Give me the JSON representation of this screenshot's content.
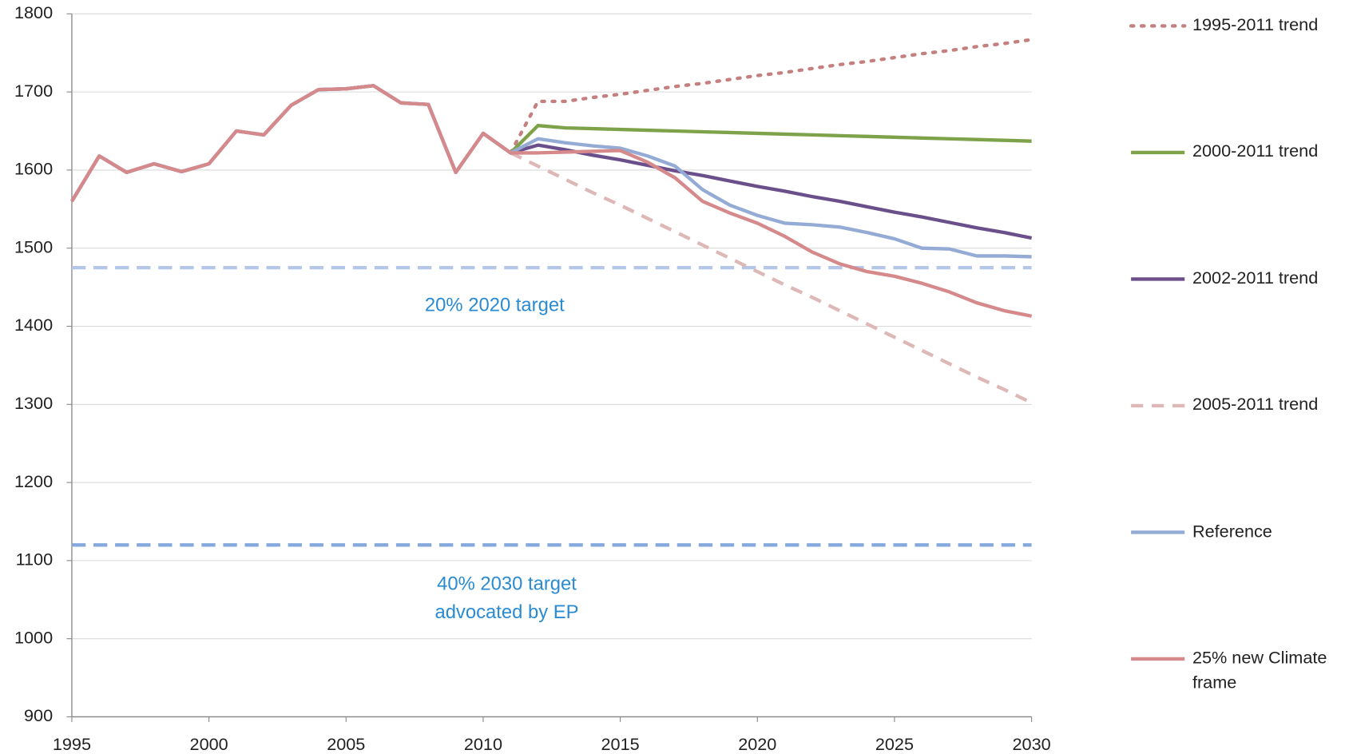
{
  "chart_data": {
    "type": "line",
    "x": [
      1995,
      1996,
      1997,
      1998,
      1999,
      2000,
      2001,
      2002,
      2003,
      2004,
      2005,
      2006,
      2007,
      2008,
      2009,
      2010,
      2011,
      2012,
      2013,
      2014,
      2015,
      2016,
      2017,
      2018,
      2019,
      2020,
      2021,
      2022,
      2023,
      2024,
      2025,
      2026,
      2027,
      2028,
      2029,
      2030
    ],
    "series": [
      {
        "name": "1995-2011 trend",
        "color": "#c4807f",
        "dash": "dotted",
        "values": [
          null,
          null,
          null,
          null,
          null,
          null,
          null,
          null,
          null,
          null,
          null,
          null,
          null,
          null,
          null,
          null,
          1622,
          1688,
          1688,
          1693,
          1697,
          1702,
          1707,
          1711,
          1716,
          1721,
          1725,
          1730,
          1735,
          1739,
          1744,
          1749,
          1753,
          1758,
          1762,
          1767
        ]
      },
      {
        "name": "2000-2011 trend",
        "color": "#7ea24a",
        "dash": "solid",
        "values": [
          null,
          null,
          null,
          null,
          null,
          null,
          null,
          null,
          null,
          null,
          null,
          null,
          null,
          null,
          null,
          null,
          1622,
          1657,
          1654,
          1653,
          1652,
          1651,
          1650,
          1649,
          1648,
          1647,
          1646,
          1645,
          1644,
          1643,
          1642,
          1641,
          1640,
          1639,
          1638,
          1637
        ]
      },
      {
        "name": "2002-2011 trend",
        "color": "#6a4f8b",
        "dash": "solid",
        "values": [
          1560,
          1618,
          1597,
          1608,
          1598,
          1608,
          1650,
          1645,
          1683,
          1703,
          1704,
          1708,
          1686,
          1684,
          1597,
          1647,
          1622,
          1632,
          1626,
          1619,
          1613,
          1606,
          1599,
          1593,
          1586,
          1579,
          1573,
          1566,
          1560,
          1553,
          1546,
          1540,
          1533,
          1526,
          1520,
          1513
        ]
      },
      {
        "name": "2005-2011 trend",
        "color": "#ddb8b7",
        "dash": "dashed",
        "values": [
          null,
          null,
          null,
          null,
          null,
          null,
          null,
          null,
          null,
          null,
          null,
          null,
          null,
          null,
          null,
          null,
          1622,
          1605,
          1588,
          1571,
          1555,
          1538,
          1521,
          1504,
          1487,
          1470,
          1453,
          1437,
          1420,
          1403,
          1386,
          1369,
          1352,
          1335,
          1319,
          1302
        ]
      },
      {
        "name": "Reference",
        "color": "#93abd5",
        "dash": "solid",
        "values": [
          1560,
          1618,
          1597,
          1608,
          1598,
          1608,
          1650,
          1645,
          1683,
          1703,
          1704,
          1708,
          1686,
          1684,
          1597,
          1647,
          1622,
          1640,
          1635,
          1631,
          1628,
          1618,
          1605,
          1575,
          1555,
          1542,
          1532,
          1530,
          1527,
          1520,
          1512,
          1500,
          1499,
          1490,
          1490,
          1489
        ]
      },
      {
        "name": "25% new Climate frame",
        "color": "#d5898b",
        "dash": "solid",
        "values": [
          1560,
          1618,
          1597,
          1608,
          1598,
          1608,
          1650,
          1645,
          1683,
          1703,
          1704,
          1708,
          1686,
          1684,
          1597,
          1647,
          1622,
          1622,
          1623,
          1624,
          1625,
          1610,
          1590,
          1560,
          1545,
          1532,
          1515,
          1495,
          1480,
          1470,
          1464,
          1455,
          1444,
          1430,
          1420,
          1413
        ]
      }
    ],
    "reference_lines": [
      {
        "value": 1475,
        "color": "#b4c7e8"
      },
      {
        "value": 1120,
        "color": "#85a9dc"
      }
    ],
    "annotations": [
      "20% 2020 target",
      "40% 2030 target advocated by EP"
    ],
    "xlim": [
      1995,
      2030
    ],
    "xticks": [
      1995,
      2000,
      2005,
      2010,
      2015,
      2020,
      2025,
      2030
    ],
    "ylim": [
      900,
      1800
    ],
    "yticks": [
      900,
      1000,
      1100,
      1200,
      1300,
      1400,
      1500,
      1600,
      1700,
      1800
    ],
    "grid": true,
    "legend": "right"
  }
}
